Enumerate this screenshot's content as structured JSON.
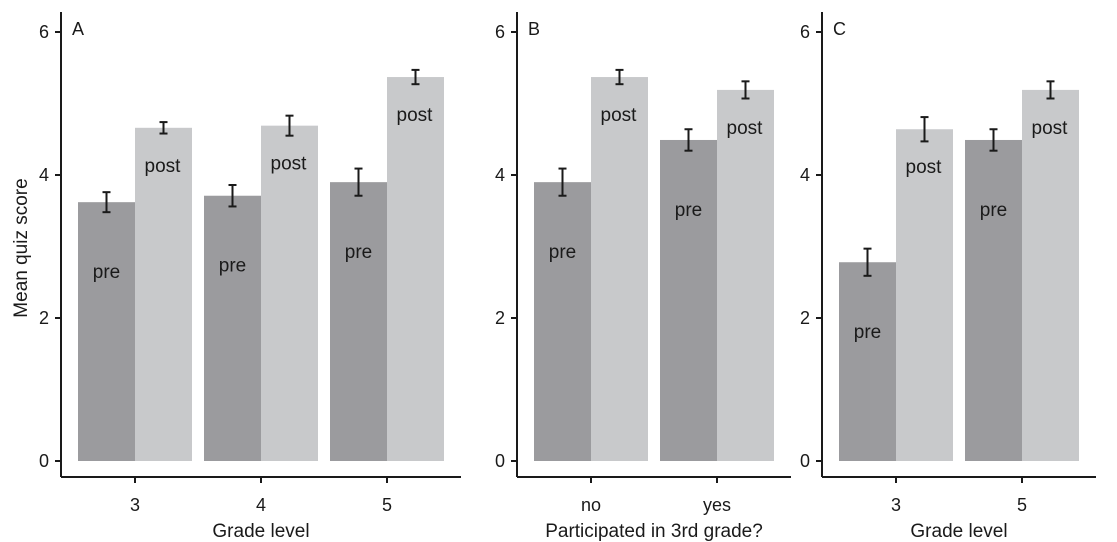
{
  "figure": {
    "ylabel": "Mean quiz score",
    "colors": {
      "pre": "#9b9b9e",
      "post": "#c8c9cb",
      "axis": "#1a1a1a",
      "errorbar": "#1a1a1a"
    }
  },
  "chart_data": [
    {
      "type": "bar",
      "panel": "A",
      "title": "A",
      "xlabel": "Grade level",
      "ylabel": "Mean quiz score",
      "ylim": [
        0,
        6
      ],
      "yticks": [
        0,
        2,
        4,
        6
      ],
      "categories": [
        "3",
        "4",
        "5"
      ],
      "series": [
        {
          "key": "pre",
          "values": [
            3.62,
            3.71,
            3.9
          ],
          "errors": [
            0.14,
            0.15,
            0.19
          ],
          "labels": [
            "pre",
            "pre",
            "pre"
          ]
        },
        {
          "key": "post",
          "values": [
            4.66,
            4.69,
            5.37
          ],
          "errors": [
            0.08,
            0.14,
            0.1
          ],
          "labels": [
            "post",
            "post",
            "post"
          ]
        }
      ],
      "grid": false,
      "legend": "none"
    },
    {
      "type": "bar",
      "panel": "B",
      "title": "B",
      "xlabel": "Participated in 3rd grade?",
      "ylabel": "",
      "ylim": [
        0,
        6
      ],
      "yticks": [
        0,
        2,
        4,
        6
      ],
      "categories": [
        "no",
        "yes"
      ],
      "series": [
        {
          "key": "pre",
          "values": [
            3.9,
            4.49
          ],
          "errors": [
            0.19,
            0.15
          ],
          "labels": [
            "pre",
            "pre"
          ]
        },
        {
          "key": "post",
          "values": [
            5.37,
            5.19
          ],
          "errors": [
            0.1,
            0.12
          ],
          "labels": [
            "post",
            "post"
          ]
        }
      ],
      "grid": false,
      "legend": "none"
    },
    {
      "type": "bar",
      "panel": "C",
      "title": "C",
      "xlabel": "Grade level",
      "ylabel": "",
      "ylim": [
        0,
        6
      ],
      "yticks": [
        0,
        2,
        4,
        6
      ],
      "categories": [
        "3",
        "5"
      ],
      "series": [
        {
          "key": "pre",
          "values": [
            2.78,
            4.49
          ],
          "errors": [
            0.19,
            0.15
          ],
          "labels": [
            "pre",
            "pre"
          ]
        },
        {
          "key": "post",
          "values": [
            4.64,
            5.19
          ],
          "errors": [
            0.17,
            0.12
          ],
          "labels": [
            "post",
            "post"
          ]
        }
      ],
      "grid": false,
      "legend": "none"
    }
  ]
}
